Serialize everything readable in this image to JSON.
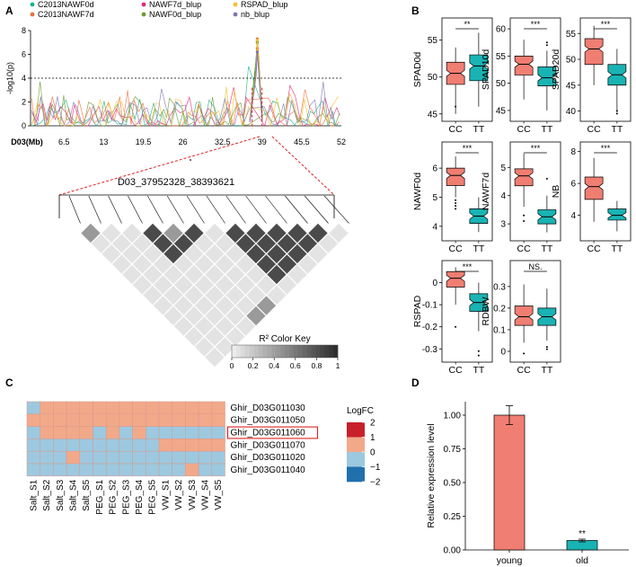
{
  "panel_labels": {
    "a": "A",
    "b": "B",
    "c": "C",
    "d": "D"
  },
  "colors": {
    "cc": "#F07E72",
    "tt": "#1AB3B3",
    "threshold": "#000000"
  },
  "chart_data": [
    {
      "panel": "A-manhattan",
      "type": "line",
      "title": "",
      "ylabel": "-log10(p)",
      "xlabel": "D03(Mb)",
      "ylim": [
        0,
        8
      ],
      "y_ticks": [
        "0",
        "2",
        "4",
        "6",
        "8"
      ],
      "x_ticks": [
        "6.5",
        "13",
        "19.5",
        "26",
        "32.5",
        "39",
        "45.5",
        "52"
      ],
      "x_tick_values": [
        6.5,
        13,
        19.5,
        26,
        32.5,
        39,
        45.5,
        52
      ],
      "xlim": [
        1,
        52
      ],
      "threshold": 4,
      "highlight_region_mb": [
        37.95,
        38.39
      ],
      "legend": [
        {
          "name": "C2013NAWF0d",
          "color": "#1CB28E"
        },
        {
          "name": "C2013NAWF7d",
          "color": "#F26B3A"
        },
        {
          "name": "NAWF7d_blup",
          "color": "#E0297A"
        },
        {
          "name": "NAWF0d_blup",
          "color": "#6E9A2E"
        },
        {
          "name": "RSPAD_blup",
          "color": "#F2C22E"
        },
        {
          "name": "nb_blup",
          "color": "#7F74B4"
        }
      ],
      "series_peaks": [
        {
          "name": "C2013NAWF0d",
          "x": [
            37.0,
            38.0,
            38.2,
            38.4,
            39.0
          ],
          "y": [
            0.6,
            5.5,
            7.0,
            5.8,
            0.8
          ]
        },
        {
          "name": "C2013NAWF7d",
          "x": [
            37.0,
            38.0,
            38.2,
            38.4,
            39.0
          ],
          "y": [
            0.5,
            5.0,
            7.3,
            6.0,
            0.6
          ]
        },
        {
          "name": "NAWF7d_blup",
          "x": [
            37.0,
            38.0,
            38.2,
            38.4,
            39.0
          ],
          "y": [
            0.4,
            4.8,
            6.5,
            5.2,
            0.5
          ]
        },
        {
          "name": "NAWF0d_blup",
          "x": [
            37.0,
            38.0,
            38.2,
            38.4,
            39.0
          ],
          "y": [
            0.5,
            5.3,
            7.1,
            5.6,
            0.7
          ]
        },
        {
          "name": "RSPAD_blup",
          "x": [
            37.0,
            38.0,
            38.2,
            38.4,
            39.0
          ],
          "y": [
            0.6,
            4.5,
            7.2,
            5.4,
            0.5
          ]
        },
        {
          "name": "nb_blup",
          "x": [
            37.0,
            38.0,
            38.2,
            38.4,
            39.0
          ],
          "y": [
            0.3,
            4.2,
            6.2,
            4.9,
            0.4
          ]
        }
      ]
    },
    {
      "panel": "A-ld",
      "type": "heatmap",
      "title": "D03_37952328_38393621",
      "legend_title": "R² Color Key",
      "key_ticks": [
        "0",
        "0.2",
        "0.4",
        "0.6",
        "0.8",
        "1"
      ],
      "n_snps": 14,
      "r2_levels": [
        "light",
        "mid",
        "dark"
      ]
    },
    {
      "panel": "B",
      "type": "box",
      "categories": [
        "CC",
        "TT"
      ],
      "plots": [
        {
          "ylabel": "SPAD0d",
          "sig": "**",
          "ylim": [
            44,
            58
          ],
          "ticks": [
            45,
            50,
            55
          ],
          "cc": {
            "q1": 49,
            "med": 50.5,
            "q3": 52,
            "lo": 45,
            "hi": 54,
            "out": [
              46
            ]
          },
          "tt": {
            "q1": 49.5,
            "med": 51.5,
            "q3": 53,
            "lo": 46,
            "hi": 56,
            "out": []
          }
        },
        {
          "ylabel": "SPAD10d",
          "sig": "***",
          "ylim": [
            43,
            62
          ],
          "ticks": [
            45,
            50,
            55,
            60
          ],
          "cc": {
            "q1": 51.5,
            "med": 53.5,
            "q3": 55,
            "lo": 47,
            "hi": 58,
            "out": []
          },
          "tt": {
            "q1": 49.5,
            "med": 51,
            "q3": 53,
            "lo": 45,
            "hi": 56,
            "out": [
              57,
              57.5
            ]
          }
        },
        {
          "ylabel": "SPAD20d",
          "sig": "***",
          "ylim": [
            38,
            58
          ],
          "ticks": [
            40,
            45,
            50,
            55
          ],
          "cc": {
            "q1": 49,
            "med": 52,
            "q3": 54,
            "lo": 45,
            "hi": 56.5,
            "out": []
          },
          "tt": {
            "q1": 45,
            "med": 47,
            "q3": 49,
            "lo": 40,
            "hi": 52,
            "out": [
              39.5,
              40
            ]
          }
        },
        {
          "ylabel": "NAWF0d",
          "sig": "***",
          "ylim": [
            3.5,
            6.9
          ],
          "ticks": [
            4,
            5,
            6
          ],
          "cc": {
            "q1": 5.4,
            "med": 5.75,
            "q3": 6.0,
            "lo": 5.0,
            "hi": 6.4,
            "out": [
              4.6,
              4.7,
              4.8,
              4.9
            ]
          },
          "tt": {
            "q1": 4.1,
            "med": 4.35,
            "q3": 4.6,
            "lo": 3.8,
            "hi": 5.0,
            "out": []
          }
        },
        {
          "ylabel": "NAWF7d",
          "sig": "***",
          "ylim": [
            2.4,
            5.9
          ],
          "ticks": [
            3,
            4,
            5
          ],
          "cc": {
            "q1": 4.35,
            "med": 4.7,
            "q3": 4.95,
            "lo": 3.6,
            "hi": 5.5,
            "out": [
              3.1,
              3.3
            ]
          },
          "tt": {
            "q1": 3.0,
            "med": 3.25,
            "q3": 3.5,
            "lo": 2.7,
            "hi": 4.0,
            "out": [
              4.6
            ]
          }
        },
        {
          "ylabel": "NB",
          "sig": "***",
          "ylim": [
            2.4,
            8.6
          ],
          "ticks": [
            4,
            6,
            8
          ],
          "cc": {
            "q1": 5.0,
            "med": 5.8,
            "q3": 6.4,
            "lo": 3.6,
            "hi": 7.6,
            "out": []
          },
          "tt": {
            "q1": 3.7,
            "med": 4.0,
            "q3": 4.4,
            "lo": 3.0,
            "hi": 4.9,
            "out": []
          }
        },
        {
          "ylabel": "RSPAD",
          "sig": "***",
          "ylim": [
            -0.36,
            0.1
          ],
          "ticks": [
            -0.3,
            -0.2,
            -0.1,
            0.0
          ],
          "cc": {
            "q1": -0.02,
            "med": 0.02,
            "q3": 0.05,
            "lo": -0.1,
            "hi": 0.07,
            "out": [
              -0.2
            ]
          },
          "tt": {
            "q1": -0.13,
            "med": -0.09,
            "q3": -0.05,
            "lo": -0.22,
            "hi": 0.0,
            "out": [
              -0.31,
              -0.33
            ]
          }
        },
        {
          "ylabel": "RDBW",
          "sig": "NS.",
          "ylim": [
            -0.05,
            0.42
          ],
          "ticks": [
            0.0,
            0.1,
            0.2,
            0.3
          ],
          "cc": {
            "q1": 0.12,
            "med": 0.16,
            "q3": 0.21,
            "lo": 0.04,
            "hi": 0.31,
            "out": [
              -0.01
            ]
          },
          "tt": {
            "q1": 0.12,
            "med": 0.16,
            "q3": 0.2,
            "lo": 0.05,
            "hi": 0.29,
            "out": [
              0.01,
              0.02
            ]
          }
        }
      ]
    },
    {
      "panel": "C",
      "type": "heatmap",
      "legend_title": "LogFC",
      "legend_ticks": [
        "2",
        "1",
        "0",
        "−1",
        "−2"
      ],
      "legend_colors": [
        "#C8202A",
        "#F1A98A",
        "#9DC9E0",
        "#2070AE"
      ],
      "columns": [
        "Salt_S1",
        "Salt_S2",
        "Salt_S3",
        "Salt_S4",
        "Salt_S5",
        "PEG_S1",
        "PEG_S2",
        "PEG_S3",
        "PEG_S4",
        "PEG_S5",
        "VW_S1",
        "VW_S2",
        "VW_S3",
        "VW_S4",
        "VW_S5"
      ],
      "rows": [
        "Ghir_D03G011030",
        "Ghir_D03G011050",
        "Ghir_D03G011060",
        "Ghir_D03G011070",
        "Ghir_D03G011020",
        "Ghir_D03G011040"
      ],
      "highlight_row": "Ghir_D03G011060",
      "values": [
        [
          0,
          1,
          1,
          1,
          1,
          1,
          1,
          1,
          1,
          1,
          1,
          1,
          1,
          1,
          1
        ],
        [
          1,
          1,
          1,
          1,
          1,
          1,
          1,
          1,
          1,
          1,
          1,
          1,
          1,
          1,
          1
        ],
        [
          0,
          1,
          1,
          1,
          1,
          0,
          1,
          0,
          1,
          0,
          0,
          0,
          0,
          0,
          0
        ],
        [
          0,
          0,
          0,
          0,
          0,
          0,
          0,
          0,
          0,
          0,
          1,
          1,
          1,
          1,
          1
        ],
        [
          0,
          0,
          0,
          1,
          0,
          0,
          0,
          0,
          0,
          0,
          0,
          0,
          0,
          0,
          0
        ],
        [
          0,
          0,
          0,
          0,
          0,
          0,
          0,
          0,
          0,
          0,
          0,
          0,
          1,
          0,
          0
        ]
      ]
    },
    {
      "panel": "D",
      "type": "bar",
      "ylabel": "Relative expression level",
      "categories": [
        "young",
        "old"
      ],
      "values": [
        1.0,
        0.07
      ],
      "errors": [
        0.07,
        0.01
      ],
      "colors": [
        "#F07E72",
        "#1AB3B3"
      ],
      "ylim": [
        0,
        1.1
      ],
      "y_ticks": [
        "0.00",
        "0.25",
        "0.50",
        "0.75",
        "1.00"
      ],
      "annotation": "**"
    }
  ]
}
